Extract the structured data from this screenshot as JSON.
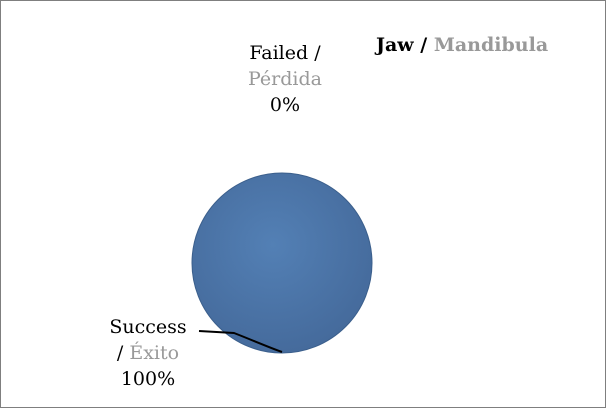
{
  "chart_data": {
    "type": "pie",
    "title": {
      "primary": "Jaw",
      "separator": " / ",
      "secondary": "Mandibula"
    },
    "slices": [
      {
        "label_primary": "Failed /",
        "label_secondary": "Pérdida",
        "value": 0,
        "percent_label": "0%"
      },
      {
        "label_primary": "Success",
        "label_secondary": "Éxito",
        "label_prefix": "/ ",
        "value": 100,
        "percent_label": "100%"
      }
    ],
    "legend": "none"
  },
  "colors": {
    "slice_fill": "#4a73a6",
    "slice_edge": "#3b5f8c",
    "primary_text": "#000000",
    "secondary_text": "#999999",
    "frame": "#7f7f7f"
  }
}
